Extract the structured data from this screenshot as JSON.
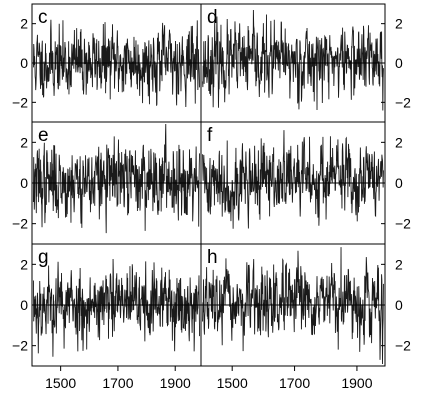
{
  "chart_data": {
    "type": "line",
    "description": "Six stacked anomaly time series panels (c-h) sharing an x axis of years",
    "x_range": [
      1400,
      1990
    ],
    "x_ticks": [
      1500,
      1700,
      1900
    ],
    "x_tick_labels": [
      "1500",
      "1700",
      "1900"
    ],
    "ylim": [
      -3,
      3
    ],
    "y_ticks": [
      -2,
      0,
      2
    ],
    "y_tick_labels": [
      "−2",
      "0",
      "2"
    ],
    "grid": false,
    "series_color": "#1a1a1a",
    "panels": [
      {
        "label": "c",
        "y_axis_side": "left",
        "seed": 11,
        "amplitude": 0.95,
        "trend": 0.05
      },
      {
        "label": "d",
        "y_axis_side": "right",
        "seed": 23,
        "amplitude": 1.0,
        "trend": 0.1
      },
      {
        "label": "e",
        "y_axis_side": "left",
        "seed": 37,
        "amplitude": 1.0,
        "trend": 0.15
      },
      {
        "label": "f",
        "y_axis_side": "right",
        "seed": 41,
        "amplitude": 1.0,
        "trend": 0.2
      },
      {
        "label": "g",
        "y_axis_side": "left",
        "seed": 53,
        "amplitude": 1.0,
        "trend": 0.05
      },
      {
        "label": "h",
        "y_axis_side": "right",
        "seed": 67,
        "amplitude": 0.95,
        "trend": 0.05
      }
    ]
  }
}
